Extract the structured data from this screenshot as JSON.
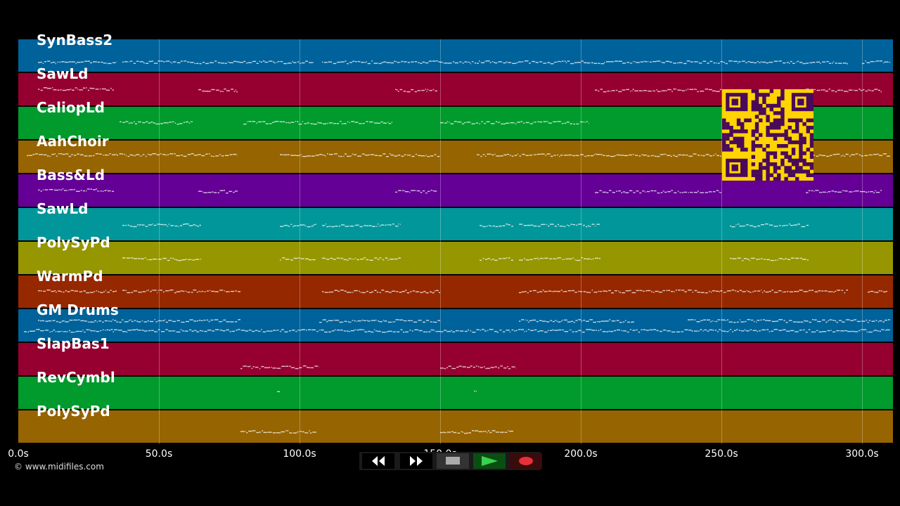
{
  "tracks": [
    {
      "label": "SynBass2",
      "color": "#00629a"
    },
    {
      "label": "SawLd",
      "color": "#960030"
    },
    {
      "label": "CaliopLd",
      "color": "#009a2d"
    },
    {
      "label": "AahChoir",
      "color": "#966400"
    },
    {
      "label": "Bass&Ld",
      "color": "#640096"
    },
    {
      "label": "SawLd",
      "color": "#00969a"
    },
    {
      "label": "PolySyPd",
      "color": "#969600"
    },
    {
      "label": "WarmPd",
      "color": "#962800"
    },
    {
      "label": "GM Drums",
      "color": "#00629a"
    },
    {
      "label": "SlapBas1",
      "color": "#960030"
    },
    {
      "label": "RevCymbl",
      "color": "#009a2d"
    },
    {
      "label": "PolySyPd",
      "color": "#966400"
    }
  ],
  "timeline": {
    "ticks": [
      "0.0s",
      "50.0s",
      "100.0s",
      "150.0s",
      "200.0s",
      "250.0s",
      "300.0s"
    ]
  },
  "footer": {
    "copyright": "© www.midifiles.com"
  },
  "transport": {
    "buttons": [
      {
        "name": "rewind-button",
        "icon": "rewind-icon"
      },
      {
        "name": "fast-forward-button",
        "icon": "fast-forward-icon"
      },
      {
        "name": "stop-button",
        "icon": "stop-icon"
      },
      {
        "name": "play-button",
        "icon": "play-icon"
      },
      {
        "name": "record-button",
        "icon": "record-icon"
      }
    ]
  },
  "qr": {
    "icon": "qr-code-icon",
    "color": "#4a0a5a",
    "bg": "#ffd400"
  }
}
